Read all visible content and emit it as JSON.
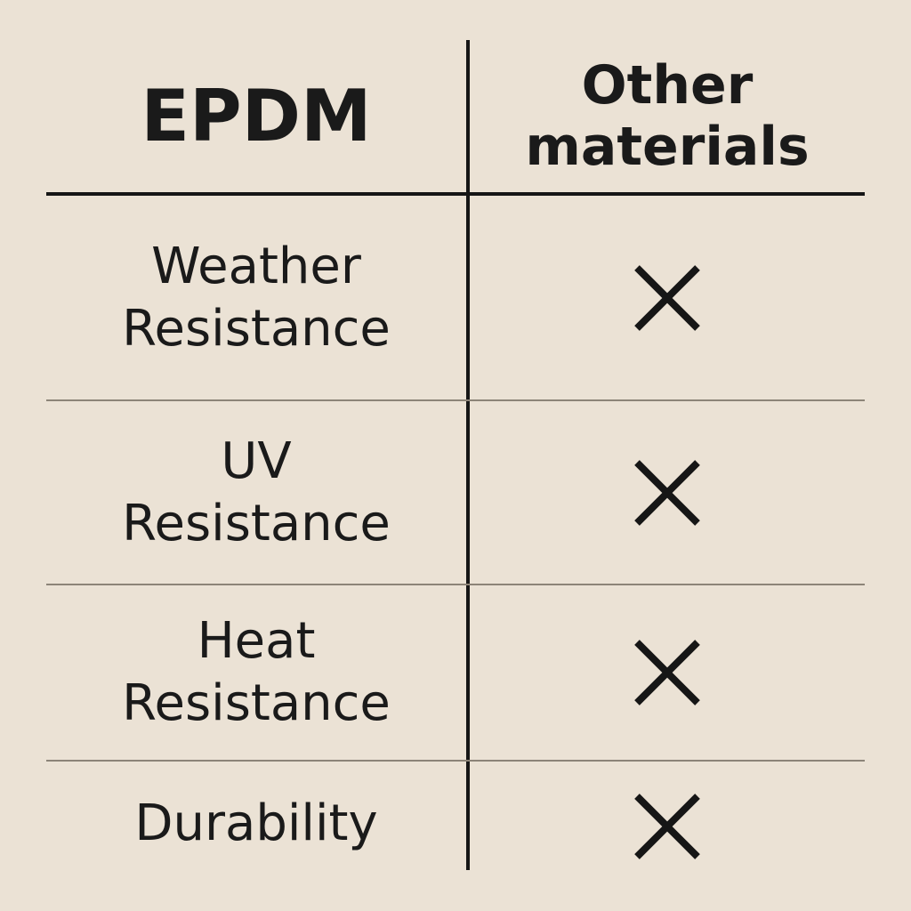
{
  "header": {
    "left": "EPDM",
    "right_line1": "Other",
    "right_line2": "materials"
  },
  "rows": [
    {
      "line1": "Weather",
      "line2": "Resistance",
      "other": "x-icon"
    },
    {
      "line1": "UV",
      "line2": "Resistance",
      "other": "x-icon"
    },
    {
      "line1": "Heat",
      "line2": "Resistance",
      "other": "x-icon"
    },
    {
      "line1": "Durability",
      "line2": "",
      "other": "x-icon"
    }
  ],
  "colors": {
    "background": "#ebe2d5",
    "ink": "#161616",
    "divider": "#8c8478"
  }
}
